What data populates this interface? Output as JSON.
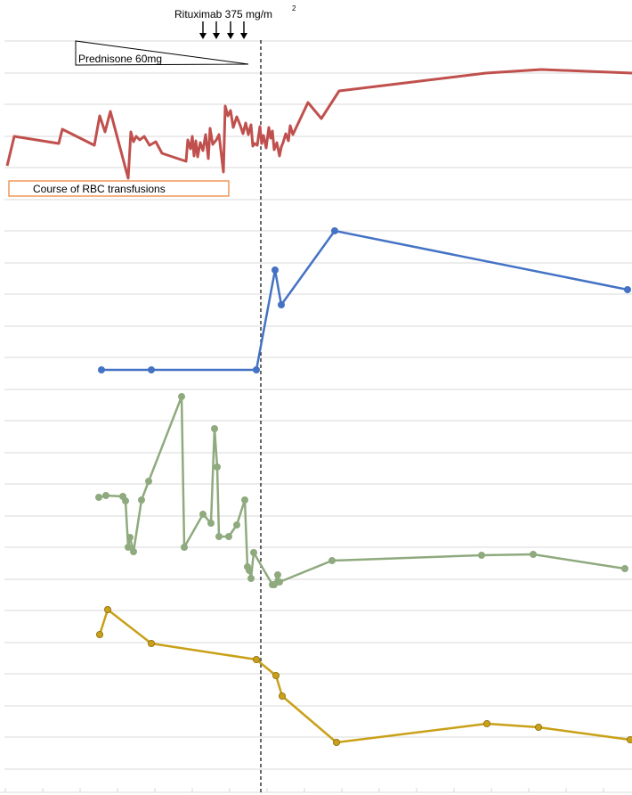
{
  "chart_data": {
    "type": "line",
    "title": "",
    "annotations": {
      "rituximab_label": "Rituximab 375 mg/m",
      "rituximab_sup": "2",
      "rituximab_dose_count": 4,
      "prednisone_label": "Prednisone 60mg",
      "rbc_label": "Course of RBC transfusions",
      "treatment_marker": "dashed vertical line"
    },
    "grid": "horizontal",
    "legend": "none",
    "axes": "no tick labels shown",
    "colors": {
      "hemoglobin": "#c0504d",
      "blue": "#4472c4",
      "green": "#8faa7e",
      "gold": "#c9a017",
      "rbc_box": "#ed7d31"
    },
    "series": [
      {
        "key": "red",
        "color": "#c0504d",
        "markers": false,
        "x": [
          8,
          16,
          66,
          70,
          106,
          112,
          118,
          124,
          144,
          147,
          150,
          153,
          157,
          162,
          168,
          175,
          182,
          209,
          211,
          214,
          216,
          218,
          220,
          222,
          225,
          228,
          231,
          234,
          236,
          239,
          243,
          246,
          251,
          253,
          256,
          259,
          262,
          266,
          270,
          273,
          276,
          279,
          282,
          284,
          286,
          289,
          292,
          294,
          296,
          299,
          302,
          304,
          306,
          308,
          311,
          314,
          316,
          318,
          321,
          324,
          326,
          329,
          346,
          361,
          381,
          546,
          608,
          710
        ],
        "y": [
          186,
          153,
          161,
          145,
          163,
          130,
          148,
          125,
          200,
          148,
          159,
          153,
          157,
          153,
          163,
          159,
          172,
          181,
          157,
          167,
          153,
          175,
          158,
          176,
          160,
          169,
          151,
          178,
          144,
          162,
          157,
          151,
          193,
          119,
          130,
          124,
          143,
          131,
          141,
          150,
          138,
          151,
          140,
          164,
          161,
          163,
          142,
          161,
          152,
          166,
          143,
          155,
          147,
          168,
          160,
          175,
          165,
          160,
          150,
          158,
          141,
          151,
          115,
          133,
          102,
          82,
          78,
          82
        ]
      },
      {
        "key": "blue",
        "color": "#4472c4",
        "markers": true,
        "x": [
          114,
          170,
          288,
          309,
          316,
          376,
          705
        ],
        "y": [
          415,
          415,
          415,
          303,
          342,
          259,
          325
        ]
      },
      {
        "key": "green",
        "color": "#8faa7e",
        "markers": true,
        "x": [
          111,
          119,
          138,
          141,
          144,
          146,
          150,
          159,
          167,
          204,
          207,
          228,
          237,
          241,
          244,
          246,
          257,
          266,
          275,
          278,
          280,
          282,
          285,
          306,
          308,
          312,
          314,
          373,
          541,
          599,
          702
        ],
        "y": [
          558,
          556,
          557,
          562,
          614,
          603,
          619,
          561,
          540,
          445,
          614,
          577,
          587,
          481,
          524,
          602,
          602,
          589,
          561,
          636,
          640,
          649,
          620,
          656,
          656,
          645,
          653,
          629,
          623,
          622,
          638
        ]
      },
      {
        "key": "gold",
        "color": "#c9a017",
        "markers": true,
        "x": [
          112,
          121,
          170,
          288,
          310,
          317,
          378,
          547,
          605,
          708
        ],
        "y": [
          712,
          684,
          722,
          740,
          758,
          781,
          833,
          812,
          816,
          830
        ]
      }
    ]
  }
}
